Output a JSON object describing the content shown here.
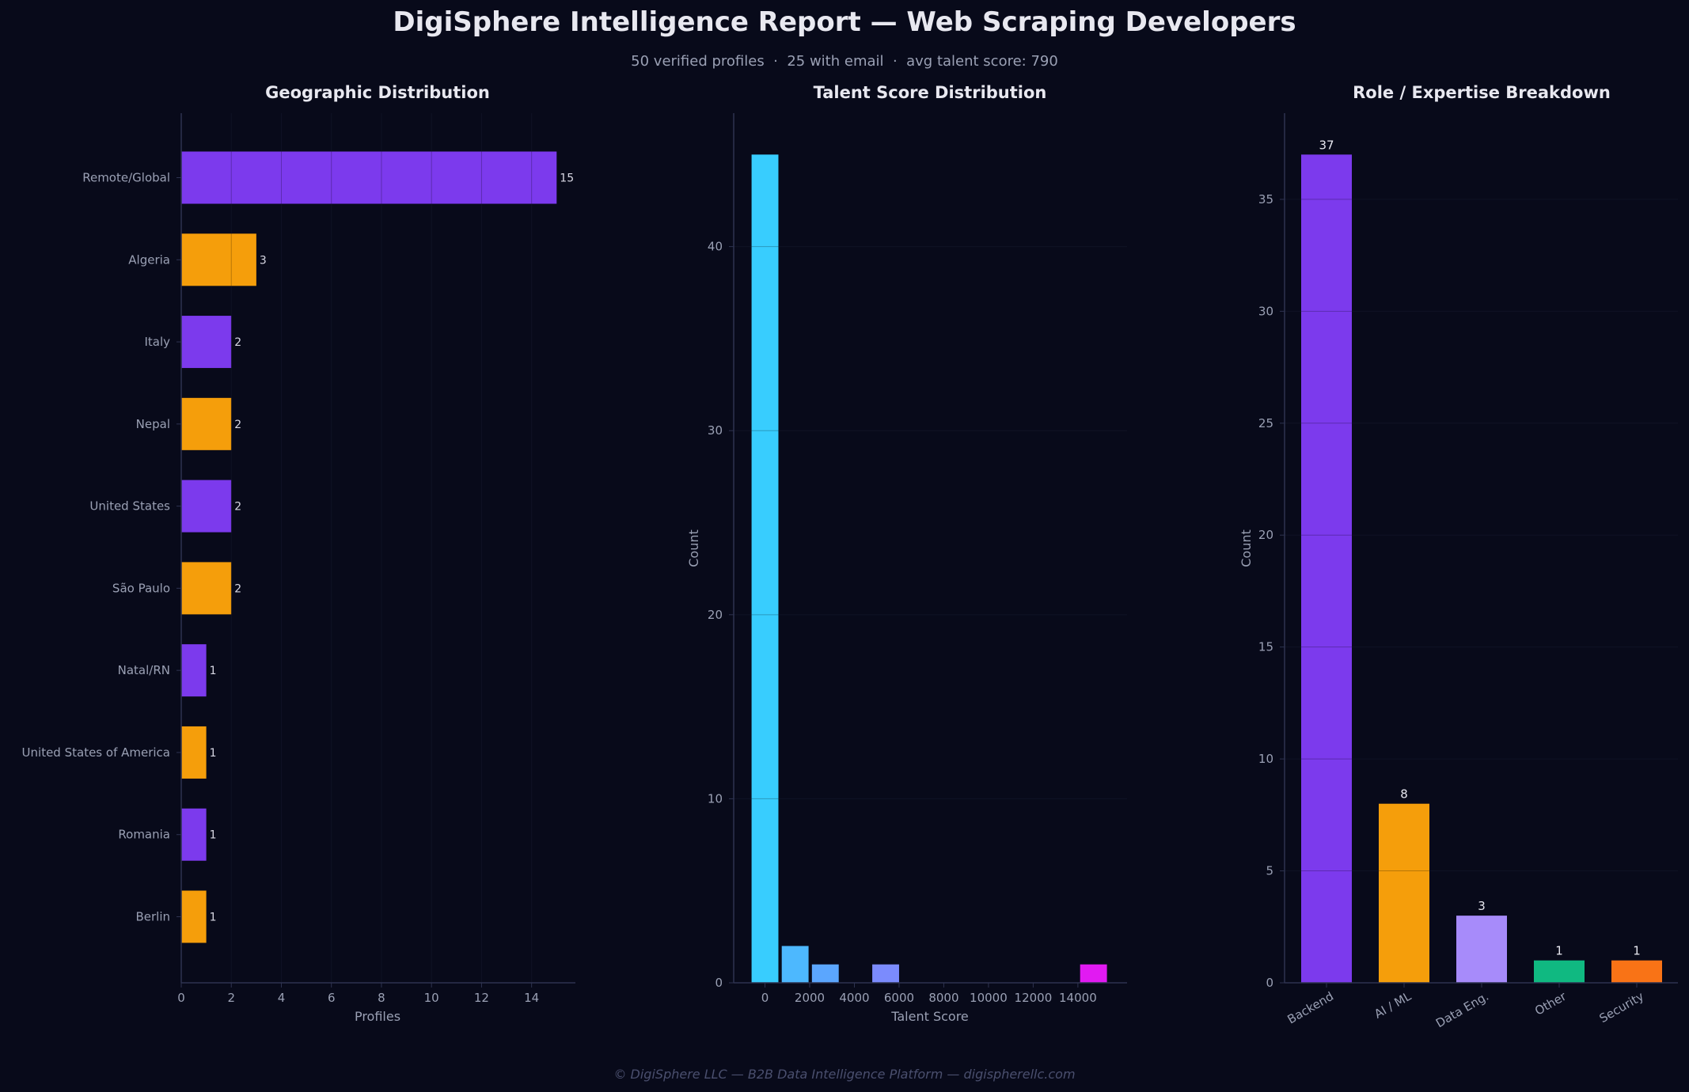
{
  "report": {
    "title": "DigiSphere Intelligence Report — Web Scraping Developers",
    "subtitle": "50 verified profiles  ·  25 with email  ·  avg talent score: 790",
    "footer": "© DigiSphere LLC — B2B Data Intelligence Platform — digispherellc.com"
  },
  "colors": {
    "background": "#080a1a",
    "axis": "#2e3350",
    "grid": "#141830",
    "purple": "#7c3aed",
    "orange": "#f59e0b",
    "tick_text": "#9aa0b4",
    "title_text": "#e8e8f0"
  },
  "chart_data": [
    {
      "type": "bar",
      "orientation": "horizontal",
      "title": "Geographic Distribution",
      "xlabel": "Profiles",
      "ylabel": "",
      "categories": [
        "Remote/Global",
        "Algeria",
        "Italy",
        "Nepal",
        "United States",
        "São Paulo",
        "Natal/RN",
        "United States of America",
        "Romania",
        "Berlin"
      ],
      "values": [
        15,
        3,
        2,
        2,
        2,
        2,
        1,
        1,
        1,
        1
      ],
      "data_labels": [
        "15",
        "3",
        "2",
        "2",
        "2",
        "2",
        "1",
        "1",
        "1",
        "1"
      ],
      "colors": [
        "#7c3aed",
        "#f59e0b",
        "#7c3aed",
        "#f59e0b",
        "#7c3aed",
        "#f59e0b",
        "#7c3aed",
        "#f59e0b",
        "#7c3aed",
        "#f59e0b"
      ],
      "xlim": [
        0,
        15.75
      ],
      "xticks": [
        0,
        2,
        4,
        6,
        8,
        10,
        12,
        14
      ],
      "xtick_labels": [
        "0",
        "2",
        "4",
        "6",
        "8",
        "10",
        "12",
        "14"
      ],
      "grid": true
    },
    {
      "type": "histogram",
      "title": "Talent Score Distribution",
      "xlabel": "Talent Score",
      "ylabel": "Count",
      "bins": [
        {
          "x0": -600,
          "x1": 600,
          "count": 45,
          "color": "#38cdfe"
        },
        {
          "x0": 750,
          "x1": 1950,
          "count": 2,
          "color": "#4db8fe"
        },
        {
          "x0": 2100,
          "x1": 3300,
          "count": 1,
          "color": "#5ba6fe"
        },
        {
          "x0": 4800,
          "x1": 6000,
          "count": 1,
          "color": "#7b8bfd"
        },
        {
          "x0": 14100,
          "x1": 15300,
          "count": 1,
          "color": "#e11af2"
        }
      ],
      "xlim": [
        -1400,
        16200
      ],
      "ylim": [
        0,
        47.25
      ],
      "xticks": [
        0,
        2000,
        4000,
        6000,
        8000,
        10000,
        12000,
        14000
      ],
      "xtick_labels": [
        "0",
        "2000",
        "4000",
        "6000",
        "8000",
        "10000",
        "12000",
        "14000"
      ],
      "yticks": [
        0,
        10,
        20,
        30,
        40
      ],
      "ytick_labels": [
        "0",
        "10",
        "20",
        "30",
        "40"
      ],
      "grid": true
    },
    {
      "type": "bar",
      "orientation": "vertical",
      "title": "Role / Expertise Breakdown",
      "xlabel": "",
      "ylabel": "Count",
      "categories": [
        "Backend",
        "AI / ML",
        "Data Eng.",
        "Other",
        "Security"
      ],
      "values": [
        37,
        8,
        3,
        1,
        1
      ],
      "data_labels": [
        "37",
        "8",
        "3",
        "1",
        "1"
      ],
      "colors": [
        "#7c3aed",
        "#f59e0b",
        "#a78bfa",
        "#10b981",
        "#f97316"
      ],
      "ylim": [
        0,
        38.85
      ],
      "yticks": [
        0,
        5,
        10,
        15,
        20,
        25,
        30,
        35
      ],
      "ytick_labels": [
        "0",
        "5",
        "10",
        "15",
        "20",
        "25",
        "30",
        "35"
      ],
      "grid": true
    }
  ]
}
